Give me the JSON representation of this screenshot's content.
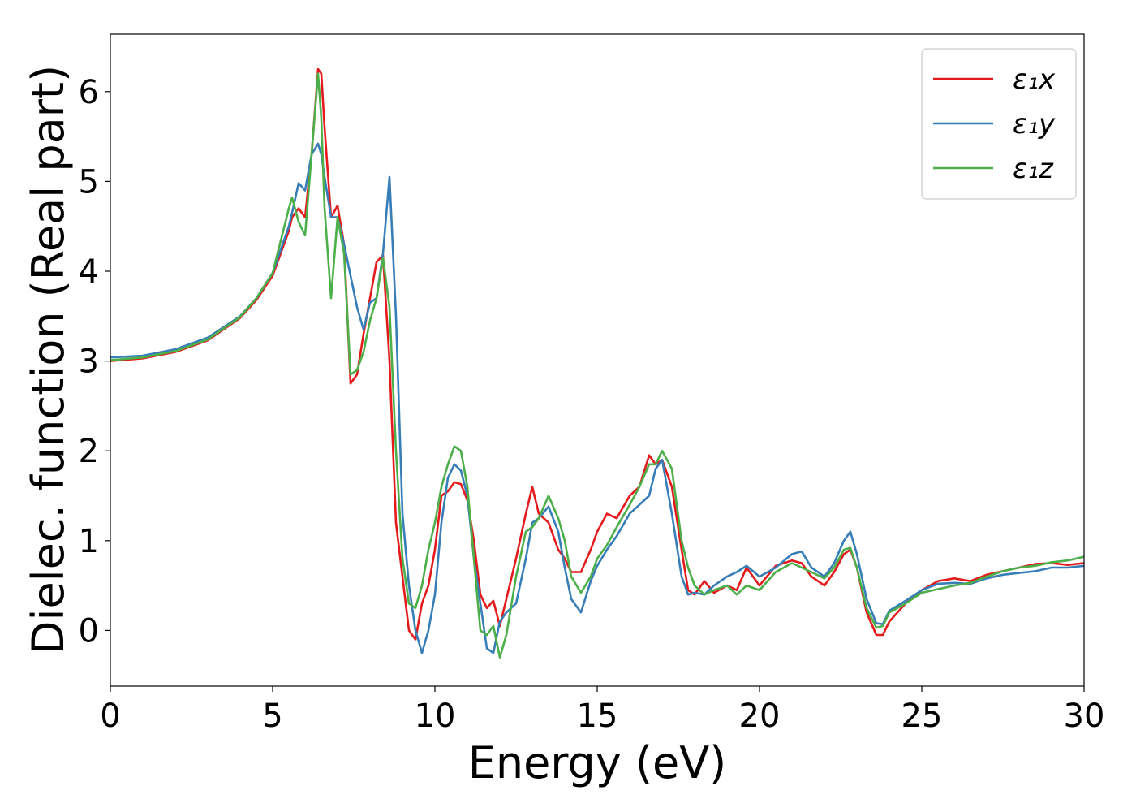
{
  "chart_data": {
    "type": "line",
    "xlabel": "Energy (eV)",
    "ylabel": "Dielec. function (Real part)",
    "x": [
      0,
      1,
      2,
      3,
      4,
      4.5,
      5,
      5.5,
      5.6,
      5.8,
      6,
      6.2,
      6.4,
      6.5,
      6.6,
      6.8,
      7,
      7.2,
      7.4,
      7.6,
      7.8,
      8,
      8.2,
      8.4,
      8.6,
      8.8,
      9,
      9.2,
      9.4,
      9.6,
      9.8,
      10,
      10.2,
      10.4,
      10.6,
      10.8,
      11,
      11.2,
      11.4,
      11.6,
      11.8,
      12,
      12.2,
      12.5,
      12.8,
      13,
      13.2,
      13.5,
      13.8,
      14,
      14.2,
      14.5,
      14.8,
      15,
      15.3,
      15.6,
      16,
      16.3,
      16.6,
      16.8,
      17,
      17.3,
      17.6,
      17.8,
      18,
      18.3,
      18.6,
      19,
      19.3,
      19.6,
      20,
      20.5,
      21,
      21.3,
      21.6,
      22,
      22.3,
      22.6,
      22.8,
      23,
      23.3,
      23.6,
      23.8,
      24,
      24.5,
      25,
      25.5,
      26,
      26.5,
      27,
      27.5,
      28,
      28.5,
      29,
      29.5,
      30
    ],
    "series": [
      {
        "name": "ε₁x",
        "color": "#e41a1c",
        "values": [
          3.0,
          3.03,
          3.1,
          3.23,
          3.48,
          3.68,
          3.95,
          4.45,
          4.6,
          4.7,
          4.6,
          5.3,
          6.25,
          6.2,
          5.6,
          4.6,
          4.73,
          4.3,
          2.75,
          2.85,
          3.3,
          3.7,
          4.1,
          4.18,
          3.0,
          1.2,
          0.6,
          0.0,
          -0.1,
          0.3,
          0.5,
          0.9,
          1.5,
          1.55,
          1.65,
          1.63,
          1.45,
          1.0,
          0.4,
          0.25,
          0.33,
          0.05,
          0.35,
          0.8,
          1.3,
          1.6,
          1.3,
          1.2,
          0.9,
          0.8,
          0.65,
          0.65,
          0.9,
          1.1,
          1.3,
          1.25,
          1.5,
          1.6,
          1.95,
          1.85,
          1.9,
          1.6,
          0.9,
          0.45,
          0.4,
          0.55,
          0.42,
          0.5,
          0.45,
          0.7,
          0.5,
          0.72,
          0.78,
          0.75,
          0.6,
          0.5,
          0.65,
          0.85,
          0.9,
          0.7,
          0.2,
          -0.05,
          -0.05,
          0.1,
          0.3,
          0.45,
          0.55,
          0.58,
          0.55,
          0.62,
          0.66,
          0.7,
          0.74,
          0.75,
          0.73,
          0.75
        ]
      },
      {
        "name": "ε₁y",
        "color": "#377eb8",
        "values": [
          3.04,
          3.06,
          3.13,
          3.26,
          3.5,
          3.7,
          3.98,
          4.5,
          4.65,
          4.98,
          4.9,
          5.3,
          5.42,
          5.3,
          5.05,
          4.6,
          4.6,
          4.3,
          3.95,
          3.6,
          3.35,
          3.65,
          3.7,
          4.2,
          5.05,
          3.5,
          1.3,
          0.5,
          0.0,
          -0.25,
          0.0,
          0.4,
          1.2,
          1.7,
          1.85,
          1.78,
          1.5,
          0.8,
          0.3,
          -0.2,
          -0.25,
          0.1,
          0.2,
          0.3,
          0.8,
          1.2,
          1.25,
          1.38,
          1.1,
          0.7,
          0.35,
          0.2,
          0.55,
          0.72,
          0.9,
          1.05,
          1.3,
          1.4,
          1.5,
          1.8,
          1.9,
          1.3,
          0.6,
          0.4,
          0.42,
          0.4,
          0.5,
          0.6,
          0.65,
          0.72,
          0.6,
          0.7,
          0.85,
          0.88,
          0.7,
          0.6,
          0.75,
          1.0,
          1.1,
          0.85,
          0.35,
          0.08,
          0.07,
          0.22,
          0.33,
          0.45,
          0.52,
          0.53,
          0.52,
          0.58,
          0.62,
          0.64,
          0.66,
          0.7,
          0.7,
          0.72
        ]
      },
      {
        "name": "ε₁z",
        "color": "#4daf4a",
        "values": [
          3.01,
          3.04,
          3.11,
          3.24,
          3.49,
          3.7,
          3.98,
          4.7,
          4.82,
          4.55,
          4.4,
          5.3,
          6.2,
          5.7,
          4.7,
          3.7,
          4.6,
          4.2,
          2.85,
          2.9,
          3.1,
          3.45,
          3.7,
          4.15,
          3.6,
          2.0,
          0.8,
          0.3,
          0.25,
          0.5,
          0.9,
          1.2,
          1.6,
          1.85,
          2.05,
          2.0,
          1.6,
          0.8,
          0.0,
          -0.05,
          0.05,
          -0.3,
          -0.05,
          0.6,
          1.1,
          1.15,
          1.25,
          1.5,
          1.25,
          1.0,
          0.6,
          0.42,
          0.6,
          0.8,
          0.95,
          1.15,
          1.4,
          1.6,
          1.85,
          1.85,
          2.0,
          1.8,
          1.0,
          0.7,
          0.5,
          0.4,
          0.45,
          0.5,
          0.4,
          0.5,
          0.45,
          0.65,
          0.75,
          0.7,
          0.65,
          0.58,
          0.7,
          0.9,
          0.92,
          0.7,
          0.25,
          0.03,
          0.05,
          0.2,
          0.3,
          0.42,
          0.46,
          0.5,
          0.53,
          0.6,
          0.66,
          0.7,
          0.72,
          0.76,
          0.78,
          0.82
        ]
      }
    ],
    "xlim": [
      0,
      30
    ],
    "xticks": [
      0,
      5,
      10,
      15,
      20,
      25,
      30
    ],
    "ylim": [
      -0.62,
      6.64
    ],
    "yticks": [
      0,
      1,
      2,
      3,
      4,
      5,
      6
    ],
    "legend": "upper right",
    "grid": false
  }
}
